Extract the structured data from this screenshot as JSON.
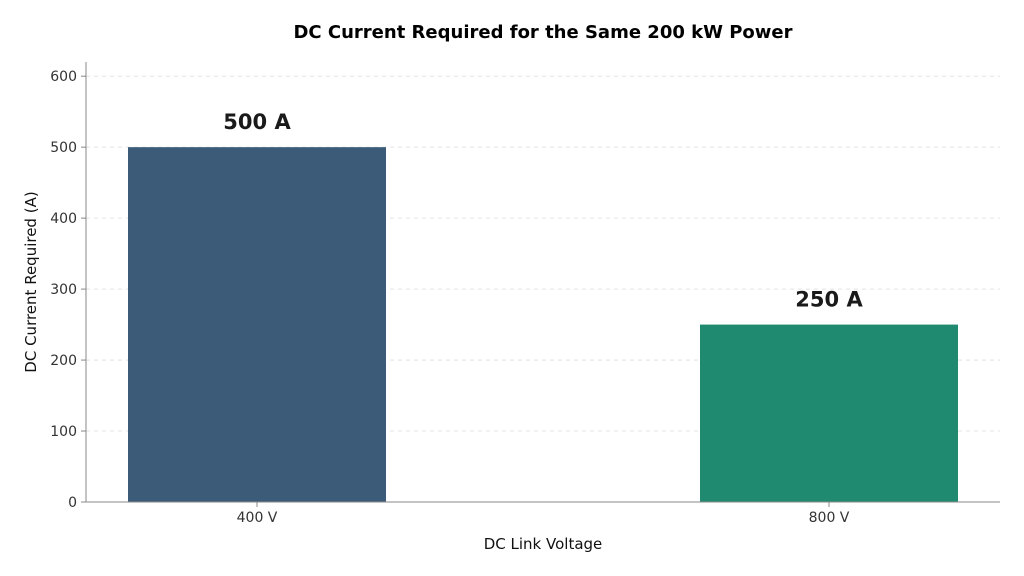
{
  "chart_data": {
    "type": "bar",
    "title": "DC Current Required for the Same 200 kW Power",
    "xlabel": "DC Link Voltage",
    "ylabel": "DC Current Required (A)",
    "categories": [
      "400 V",
      "800 V"
    ],
    "values": [
      500,
      250
    ],
    "data_labels": [
      "500 A",
      "250 A"
    ],
    "bar_colors": [
      "#3b5b78",
      "#208a70"
    ],
    "ylim": [
      0,
      620
    ],
    "yticks": [
      0,
      100,
      200,
      300,
      400,
      500,
      600
    ],
    "grid": "horizontal-dashed",
    "legend": "none"
  }
}
